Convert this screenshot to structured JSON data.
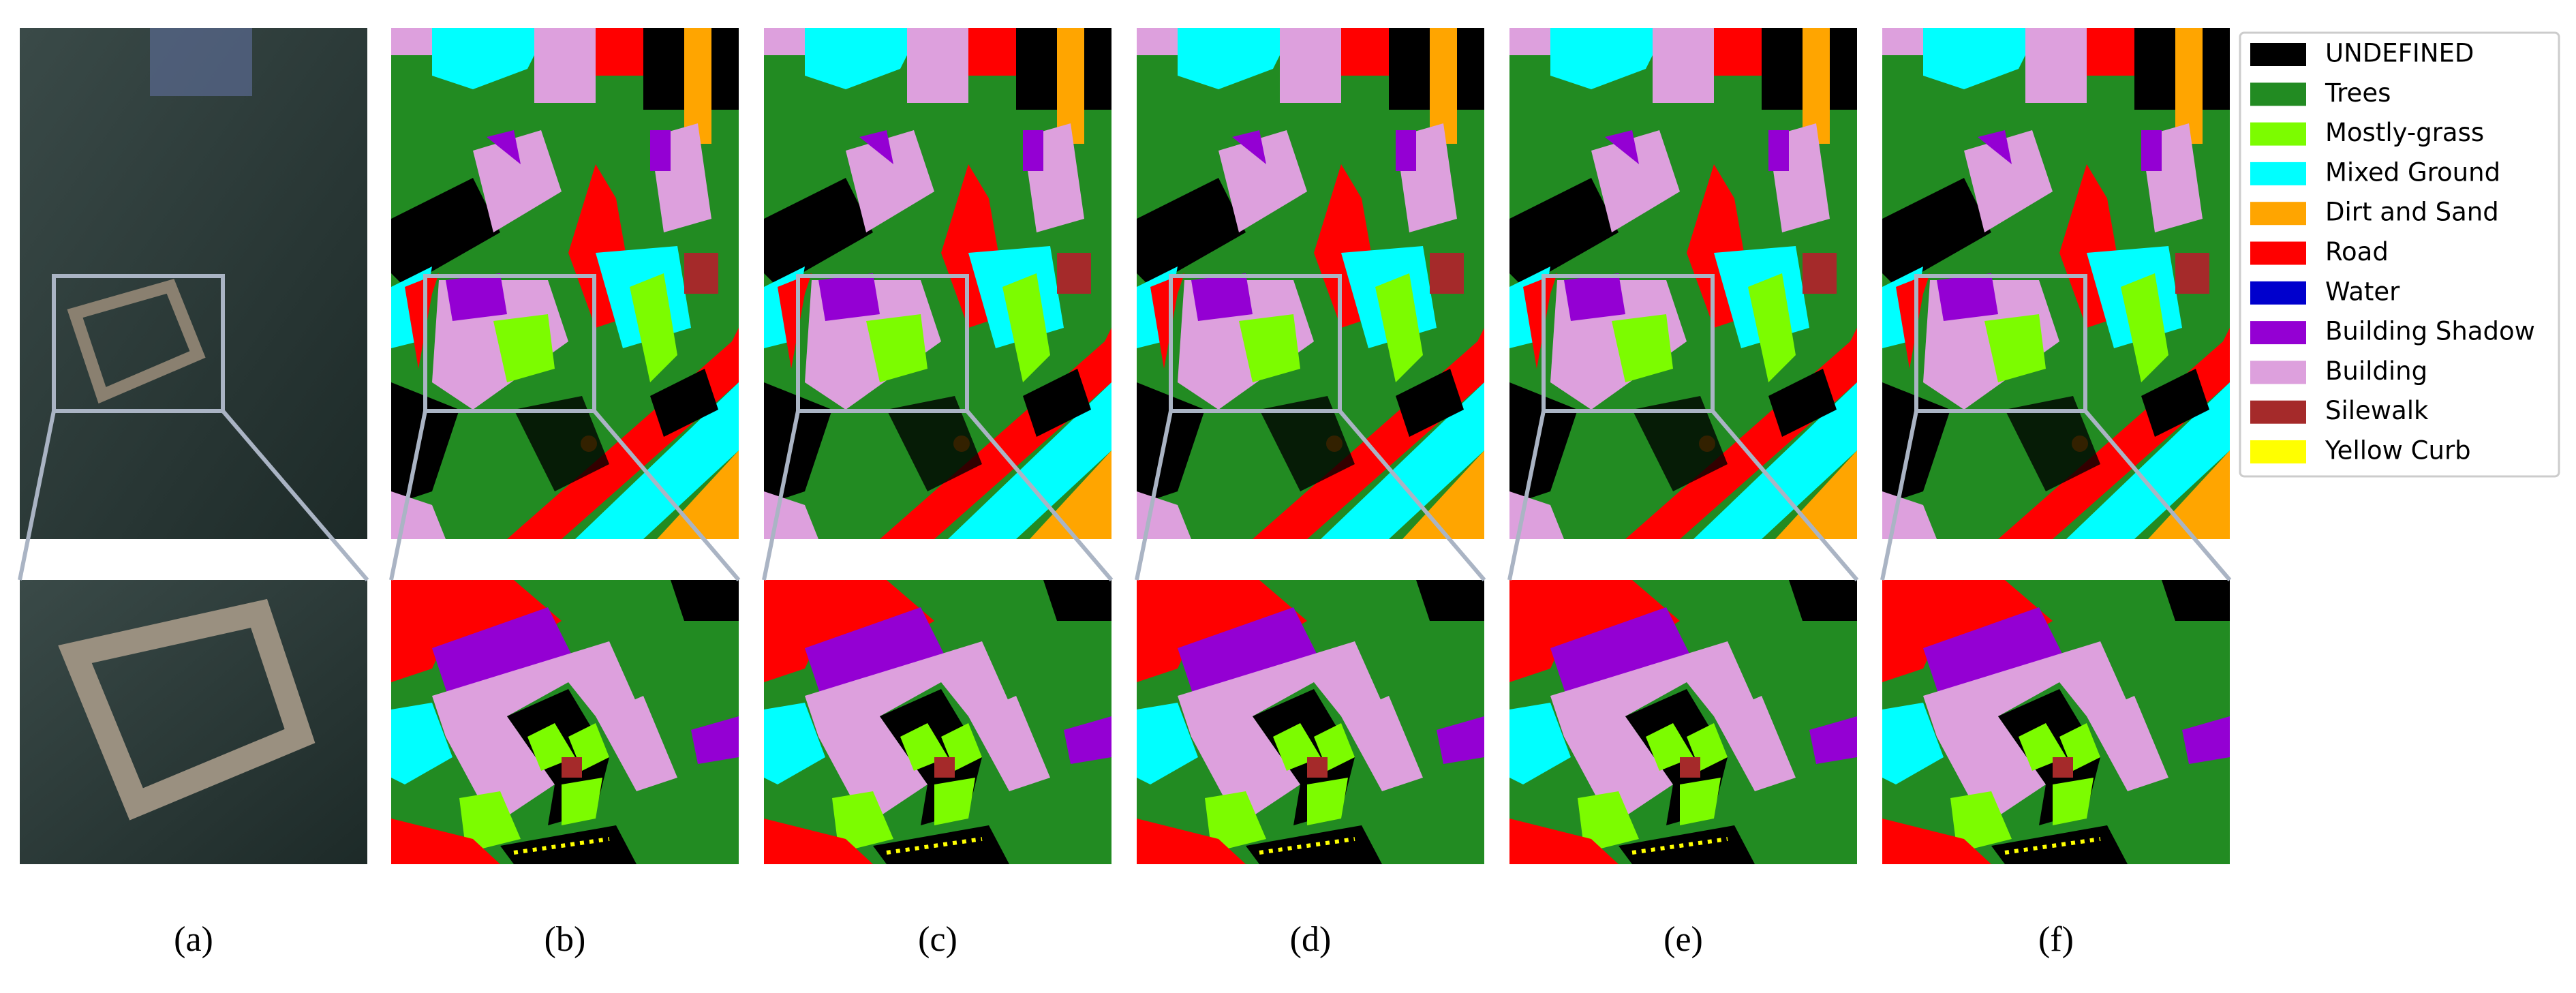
{
  "panels": [
    {
      "label": "(a)"
    },
    {
      "label": "(b)"
    },
    {
      "label": "(c)"
    },
    {
      "label": "(d)"
    },
    {
      "label": "(e)"
    },
    {
      "label": "(f)"
    }
  ],
  "legend": {
    "items": [
      {
        "name": "UNDEFINED",
        "color": "#000000"
      },
      {
        "name": "Trees",
        "color": "#228b22"
      },
      {
        "name": "Mostly-grass",
        "color": "#7cfc00"
      },
      {
        "name": "Mixed Ground",
        "color": "#00ffff"
      },
      {
        "name": "Dirt and Sand",
        "color": "#ffa500"
      },
      {
        "name": "Road",
        "color": "#ff0000"
      },
      {
        "name": "Water",
        "color": "#0000cd"
      },
      {
        "name": "Building Shadow",
        "color": "#9400d3"
      },
      {
        "name": "Building",
        "color": "#dda0dd"
      },
      {
        "name": "Silewalk",
        "color": "#a52a2a"
      },
      {
        "name": "Yellow Curb",
        "color": "#ffff00"
      }
    ]
  }
}
